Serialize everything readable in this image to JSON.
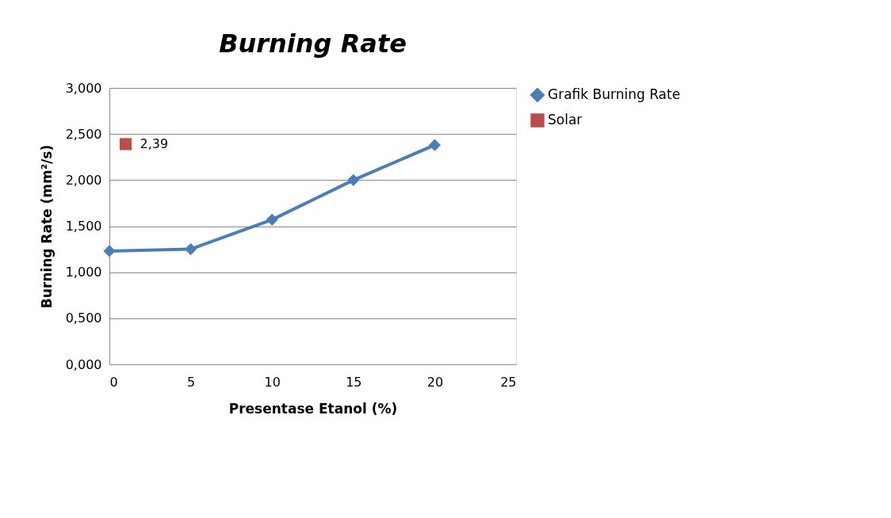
{
  "chart_data": {
    "type": "line",
    "title": "Burning Rate",
    "xlabel": "Presentase Etanol (%)",
    "ylabel": "Burning Rate (mm²/s)",
    "xlim": [
      0,
      25
    ],
    "xticks": [
      0,
      5,
      10,
      15,
      20,
      25
    ],
    "ylim": [
      0,
      3
    ],
    "yticks": [
      {
        "value": 0,
        "label": "0,000"
      },
      {
        "value": 0.5,
        "label": "0,500"
      },
      {
        "value": 1,
        "label": "1,000"
      },
      {
        "value": 1.5,
        "label": "1,500"
      },
      {
        "value": 2,
        "label": "2,000"
      },
      {
        "value": 2.5,
        "label": "2,500"
      },
      {
        "value": 3,
        "label": "3,000"
      }
    ],
    "grid": "y",
    "legend": "right",
    "line_style": "solid",
    "series": [
      {
        "name": "Grafik Burning Rate",
        "type": "line",
        "marker": "diamond",
        "color": "#4a7ebb",
        "x": [
          0,
          5,
          10,
          15,
          20
        ],
        "values": [
          1.23,
          1.25,
          1.57,
          2.0,
          2.38
        ]
      },
      {
        "name": "Solar",
        "type": "scatter",
        "marker": "square",
        "color": "#be4b48",
        "x": [
          1
        ],
        "values": [
          2.39
        ],
        "value_labels": [
          "2,39"
        ]
      }
    ]
  }
}
